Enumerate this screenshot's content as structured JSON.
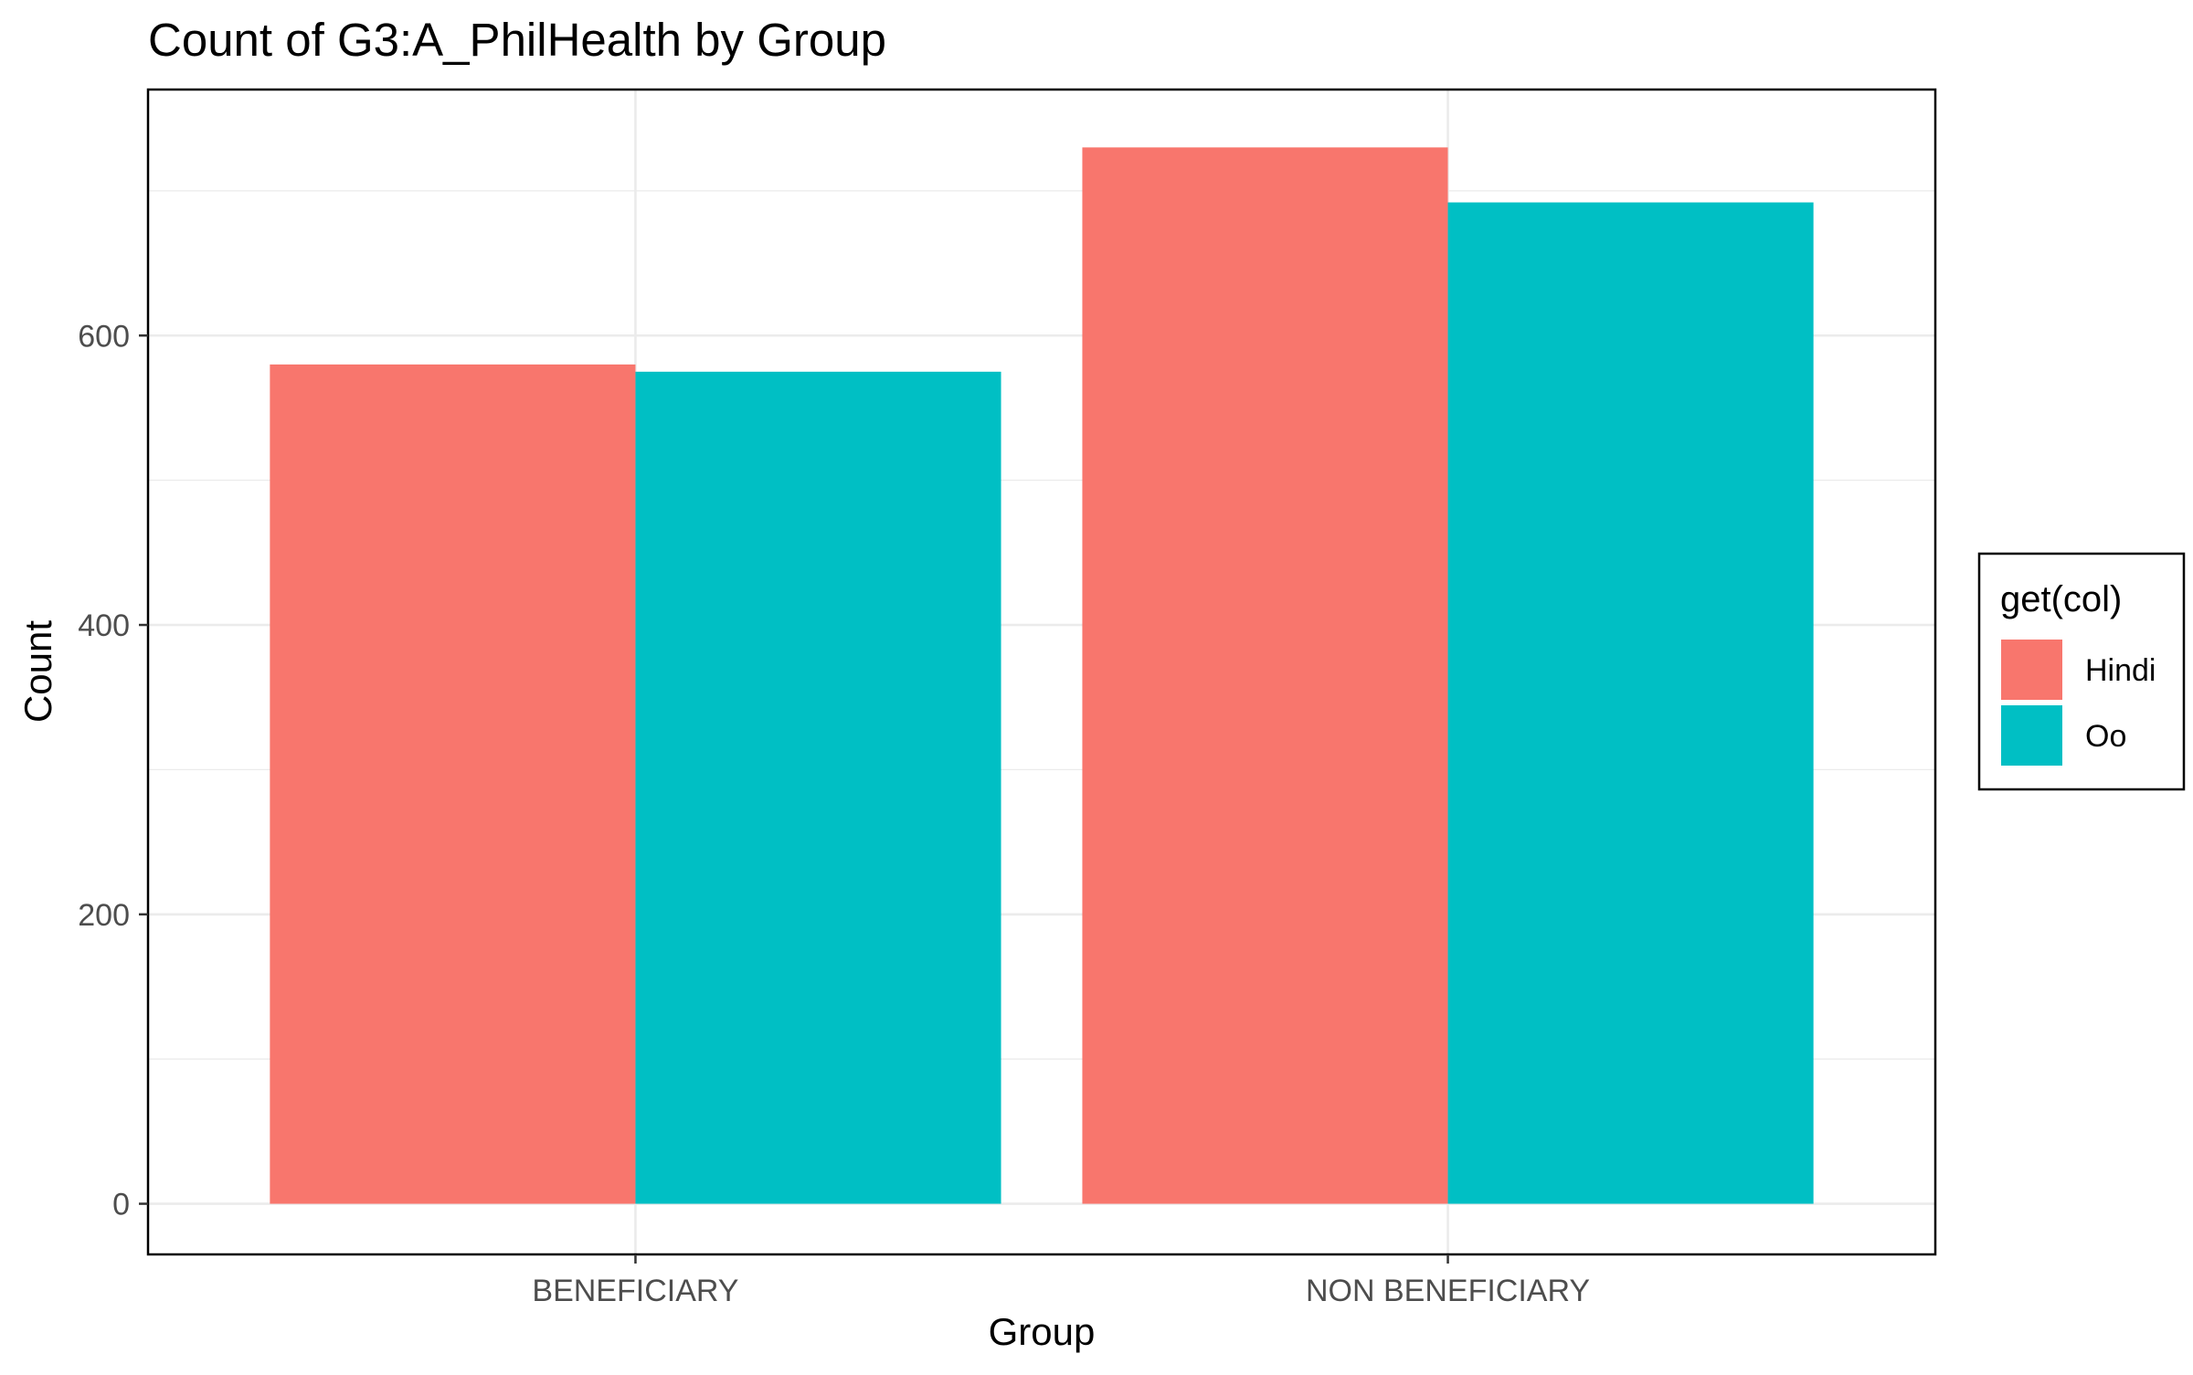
{
  "chart_data": {
    "type": "bar",
    "title": "Count of G3:A_PhilHealth by Group",
    "xlabel": "Group",
    "ylabel": "Count",
    "categories": [
      "BENEFICIARY",
      "NON BENEFICIARY"
    ],
    "series": [
      {
        "name": "Hindi",
        "values": [
          580,
          730
        ],
        "color": "#F8766D"
      },
      {
        "name": "Oo",
        "values": [
          575,
          692
        ],
        "color": "#00BFC4"
      }
    ],
    "ylim": [
      -35,
      770
    ],
    "yticks": [
      0,
      200,
      400,
      600
    ],
    "yticks_labels": [
      "0",
      "200",
      "400",
      "600"
    ],
    "minor_yticks": [
      100,
      300,
      500,
      700
    ],
    "grid": true,
    "legend": {
      "title": "get(col)",
      "position": "right",
      "entries": [
        "Hindi",
        "Oo"
      ]
    }
  }
}
